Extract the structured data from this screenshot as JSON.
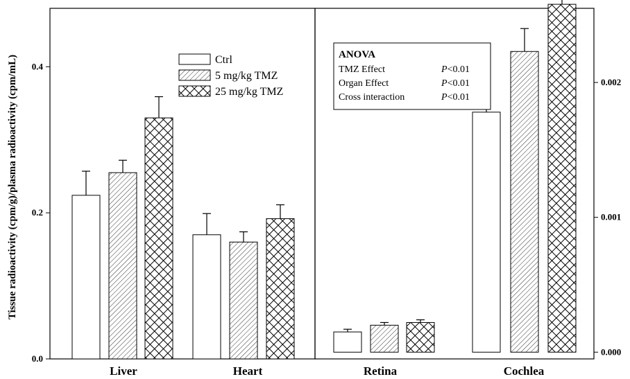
{
  "chart_data": {
    "type": "bar",
    "ylabel": "Tissue radioactivity (cpm/g)/plasma radioactivity (cpm/mL)",
    "categories": [
      "Liver",
      "Heart",
      "Retina",
      "Cochlea"
    ],
    "left_axis": {
      "categories": [
        "Liver",
        "Heart"
      ],
      "ylim": [
        0,
        0.48
      ],
      "ticks": [
        0.0,
        0.2,
        0.4
      ],
      "tick_labels": [
        "0.0",
        "0.2",
        "0.4"
      ]
    },
    "right_axis": {
      "categories": [
        "Retina",
        "Cochlea"
      ],
      "ylim": [
        -5e-05,
        0.00255
      ],
      "ticks": [
        0.0,
        0.001,
        0.002
      ],
      "tick_labels": [
        "0.000",
        "0.001",
        "0.002"
      ]
    },
    "series": [
      {
        "name": "Ctrl",
        "pattern": "white",
        "values": [
          0.224,
          0.17,
          0.00015,
          0.00178
        ],
        "errors": [
          0.033,
          0.029,
          2e-05,
          0.00014
        ]
      },
      {
        "name": "5 mg/kg TMZ",
        "pattern": "hatch",
        "values": [
          0.255,
          0.16,
          0.0002,
          0.00223
        ],
        "errors": [
          0.017,
          0.014,
          2e-05,
          0.00017
        ]
      },
      {
        "name": "25 mg/kg TMZ",
        "pattern": "crosshatch",
        "values": [
          0.33,
          0.192,
          0.00022,
          0.00258
        ],
        "errors": [
          0.029,
          0.019,
          2e-05,
          0.00025
        ]
      }
    ],
    "legend": {
      "placement": "top-left-center"
    },
    "grid": false,
    "annotation": {
      "title": "ANOVA",
      "rows": [
        {
          "label": "TMZ Effect",
          "p": "P",
          "value": "<0.01"
        },
        {
          "label": "Organ Effect",
          "p": "P",
          "value": "<0.01"
        },
        {
          "label": "Cross interaction",
          "p": "P",
          "value": "<0.01"
        }
      ]
    }
  }
}
